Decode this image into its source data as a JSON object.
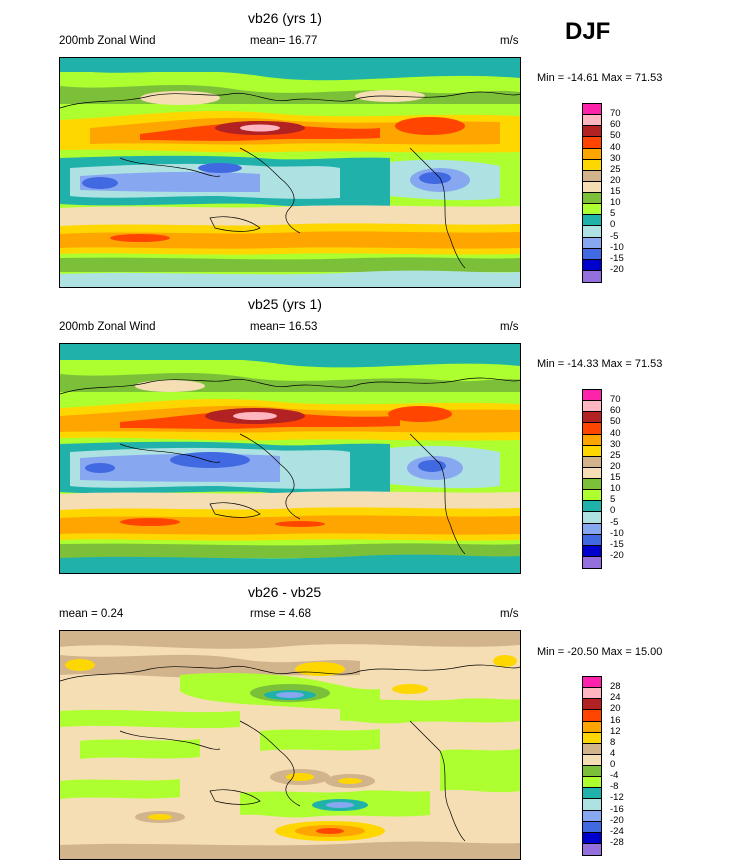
{
  "header": {
    "season": "DJF"
  },
  "panels": [
    {
      "title": "vb26 (yrs 1)",
      "left_label": "200mb Zonal Wind",
      "center_label": "mean=  16.77",
      "units": "m/s",
      "minmax": "Min = -14.61 Max =  71.53",
      "legend_labels": [
        "70",
        "60",
        "50",
        "40",
        "30",
        "25",
        "20",
        "15",
        "10",
        "5",
        "0",
        "-5",
        "-10",
        "-15",
        "-20"
      ],
      "legend_colors": [
        "#ff22aa",
        "#ffb6c1",
        "#b22222",
        "#ff4500",
        "#ffa500",
        "#ffd700",
        "#d2b48c",
        "#f5deb3",
        "#7cc03a",
        "#adff2f",
        "#20b2aa",
        "#aee2e2",
        "#87a8f0",
        "#4169e1",
        "#0000cd",
        "#9370db"
      ]
    },
    {
      "title": "vb25 (yrs 1)",
      "left_label": "200mb Zonal Wind",
      "center_label": "mean=  16.53",
      "units": "m/s",
      "minmax": "Min = -14.33 Max =  71.53",
      "legend_labels": [
        "70",
        "60",
        "50",
        "40",
        "30",
        "25",
        "20",
        "15",
        "10",
        "5",
        "0",
        "-5",
        "-10",
        "-15",
        "-20"
      ],
      "legend_colors": [
        "#ff22aa",
        "#ffb6c1",
        "#b22222",
        "#ff4500",
        "#ffa500",
        "#ffd700",
        "#d2b48c",
        "#f5deb3",
        "#7cc03a",
        "#adff2f",
        "#20b2aa",
        "#aee2e2",
        "#87a8f0",
        "#4169e1",
        "#0000cd",
        "#9370db"
      ]
    },
    {
      "title": "vb26 - vb25",
      "left_label": "mean =   0.24",
      "center_label": "rmse =   4.68",
      "units": "m/s",
      "minmax": "Min = -20.50 Max =  15.00",
      "legend_labels": [
        "28",
        "24",
        "20",
        "16",
        "12",
        "8",
        "4",
        "0",
        "-4",
        "-8",
        "-12",
        "-16",
        "-20",
        "-24",
        "-28"
      ],
      "legend_colors": [
        "#ff22aa",
        "#ffb6c1",
        "#b22222",
        "#ff4500",
        "#ffa500",
        "#ffd700",
        "#d2b48c",
        "#f5deb3",
        "#7cc03a",
        "#adff2f",
        "#20b2aa",
        "#aee2e2",
        "#87a8f0",
        "#4169e1",
        "#0000cd",
        "#9370db"
      ]
    }
  ],
  "chart_data": {
    "type": "heatmap",
    "description_fields": [
      "title",
      "left_label",
      "center_label",
      "units",
      "minmax",
      "legend_labels"
    ],
    "panels": [
      {
        "title": "vb26 (yrs 1)",
        "mean": 16.77,
        "min": -14.61,
        "max": 71.53,
        "units": "m/s",
        "levels": [
          -20,
          -15,
          -10,
          -5,
          0,
          5,
          10,
          15,
          20,
          25,
          30,
          40,
          50,
          60,
          70
        ]
      },
      {
        "title": "vb25 (yrs 1)",
        "mean": 16.53,
        "min": -14.33,
        "max": 71.53,
        "units": "m/s",
        "levels": [
          -20,
          -15,
          -10,
          -5,
          0,
          5,
          10,
          15,
          20,
          25,
          30,
          40,
          50,
          60,
          70
        ]
      },
      {
        "title": "vb26 - vb25",
        "mean": 0.24,
        "rmse": 4.68,
        "min": -20.5,
        "max": 15.0,
        "units": "m/s",
        "levels": [
          -28,
          -24,
          -20,
          -16,
          -12,
          -8,
          -4,
          0,
          4,
          8,
          12,
          16,
          20,
          24,
          28
        ]
      }
    ]
  }
}
